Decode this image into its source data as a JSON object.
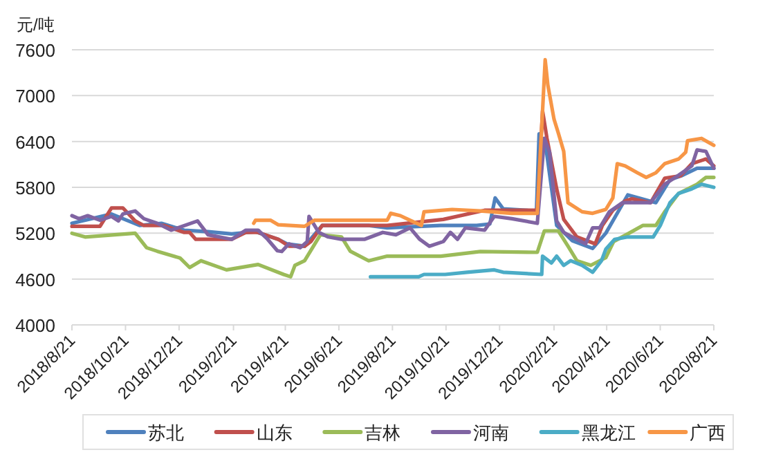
{
  "chart_data": {
    "type": "line",
    "ylabel": "元/吨",
    "grid": "y",
    "legend": "bottom",
    "line_style": "solid",
    "xlim": [
      "2018-08-21",
      "2020-08-21"
    ],
    "ylim": [
      4000,
      7600
    ],
    "yticks": [
      4000,
      4600,
      5200,
      5800,
      6400,
      7000,
      7600
    ],
    "xticks": [
      {
        "value": "2018-08-21",
        "label": "2018/8/21"
      },
      {
        "value": "2018-10-21",
        "label": "2018/10/21"
      },
      {
        "value": "2018-12-21",
        "label": "2018/12/21"
      },
      {
        "value": "2019-02-21",
        "label": "2019/2/21"
      },
      {
        "value": "2019-04-21",
        "label": "2019/4/21"
      },
      {
        "value": "2019-06-21",
        "label": "2019/6/21"
      },
      {
        "value": "2019-08-21",
        "label": "2019/8/21"
      },
      {
        "value": "2019-10-21",
        "label": "2019/10/21"
      },
      {
        "value": "2019-12-21",
        "label": "2019/12/21"
      },
      {
        "value": "2020-02-21",
        "label": "2020/2/21"
      },
      {
        "value": "2020-04-21",
        "label": "2020/4/21"
      },
      {
        "value": "2020-06-21",
        "label": "2020/6/21"
      },
      {
        "value": "2020-08-21",
        "label": "2020/8/21"
      }
    ],
    "series": [
      {
        "name": "苏北",
        "color": "#4f81bd",
        "x": [
          "2018-08-21",
          "2018-10-05",
          "2018-11-06",
          "2018-12-01",
          "2018-12-27",
          "2019-01-23",
          "2019-02-19",
          "2019-03-18",
          "2019-04-13",
          "2019-04-23",
          "2019-05-13",
          "2019-06-02",
          "2019-07-25",
          "2019-08-15",
          "2019-10-15",
          "2019-11-25",
          "2019-12-10",
          "2019-12-16",
          "2019-12-25",
          "2020-02-01",
          "2020-02-04",
          "2020-02-12",
          "2020-02-24",
          "2020-03-13",
          "2020-04-05",
          "2020-04-20",
          "2020-05-05",
          "2020-05-15",
          "2020-06-16",
          "2020-07-02",
          "2020-07-15",
          "2020-08-02",
          "2020-08-21"
        ],
        "values": [
          5330,
          5450,
          5300,
          5330,
          5240,
          5220,
          5190,
          5220,
          5120,
          5060,
          5030,
          5300,
          5300,
          5270,
          5300,
          5300,
          5320,
          5660,
          5520,
          5490,
          6500,
          6300,
          5300,
          5100,
          5000,
          5200,
          5500,
          5700,
          5600,
          5900,
          5950,
          6050,
          6050
        ]
      },
      {
        "name": "山东",
        "color": "#c0504d",
        "x": [
          "2018-08-21",
          "2018-09-22",
          "2018-10-05",
          "2018-10-18",
          "2018-11-01",
          "2018-11-11",
          "2018-12-04",
          "2018-12-27",
          "2019-01-02",
          "2019-01-09",
          "2019-02-19",
          "2019-03-07",
          "2019-03-21",
          "2019-04-13",
          "2019-04-25",
          "2019-05-13",
          "2019-05-20",
          "2019-06-02",
          "2019-08-15",
          "2019-10-18",
          "2019-12-04",
          "2020-02-02",
          "2020-02-08",
          "2020-02-13",
          "2020-02-24",
          "2020-03-03",
          "2020-03-18",
          "2020-04-08",
          "2020-04-16",
          "2020-04-28",
          "2020-05-12",
          "2020-05-20",
          "2020-06-10",
          "2020-06-26",
          "2020-07-14",
          "2020-07-27",
          "2020-08-12",
          "2020-08-21"
        ],
        "values": [
          5290,
          5290,
          5530,
          5530,
          5360,
          5300,
          5300,
          5210,
          5210,
          5120,
          5120,
          5210,
          5210,
          5120,
          5030,
          5030,
          5090,
          5300,
          5300,
          5380,
          5500,
          5500,
          6800,
          6440,
          5780,
          5380,
          5150,
          5060,
          5300,
          5500,
          5620,
          5650,
          5600,
          5920,
          5950,
          6110,
          6170,
          6080
        ]
      },
      {
        "name": "吉林",
        "color": "#9bbb59",
        "x": [
          "2018-08-21",
          "2018-09-05",
          "2018-11-01",
          "2018-11-14",
          "2018-11-26",
          "2018-12-22",
          "2019-01-02",
          "2019-01-15",
          "2019-02-13",
          "2019-03-21",
          "2019-04-19",
          "2019-04-27",
          "2019-05-02",
          "2019-05-13",
          "2019-05-31",
          "2019-06-24",
          "2019-07-04",
          "2019-07-25",
          "2019-08-15",
          "2019-10-15",
          "2019-11-29",
          "2020-02-02",
          "2020-02-10",
          "2020-02-26",
          "2020-03-08",
          "2020-03-18",
          "2020-04-03",
          "2020-04-20",
          "2020-04-29",
          "2020-05-15",
          "2020-06-01",
          "2020-06-16",
          "2020-06-26",
          "2020-07-12",
          "2020-08-02",
          "2020-08-12",
          "2020-08-21"
        ],
        "values": [
          5200,
          5150,
          5200,
          5010,
          4965,
          4875,
          4750,
          4840,
          4720,
          4790,
          4660,
          4630,
          4780,
          4840,
          5180,
          5150,
          4965,
          4840,
          4900,
          4900,
          4960,
          4950,
          5230,
          5230,
          5030,
          4840,
          4780,
          4880,
          5090,
          5190,
          5300,
          5300,
          5480,
          5720,
          5840,
          5930,
          5930
        ]
      },
      {
        "name": "河南",
        "color": "#8064a2",
        "x": [
          "2018-08-21",
          "2018-08-29",
          "2018-09-08",
          "2018-09-22",
          "2018-10-05",
          "2018-10-13",
          "2018-10-18",
          "2018-11-01",
          "2018-11-11",
          "2018-11-26",
          "2018-12-12",
          "2019-01-11",
          "2019-01-23",
          "2019-02-19",
          "2019-03-07",
          "2019-03-21",
          "2019-04-01",
          "2019-04-12",
          "2019-04-17",
          "2019-04-25",
          "2019-05-08",
          "2019-05-16",
          "2019-05-18",
          "2019-05-29",
          "2019-06-09",
          "2019-06-24",
          "2019-07-20",
          "2019-08-10",
          "2019-08-25",
          "2019-09-10",
          "2019-09-21",
          "2019-10-02",
          "2019-10-18",
          "2019-10-26",
          "2019-11-03",
          "2019-11-12",
          "2019-12-04",
          "2019-12-15",
          "2020-01-04",
          "2020-02-02",
          "2020-02-10",
          "2020-02-16",
          "2020-02-24",
          "2020-03-03",
          "2020-03-18",
          "2020-03-28",
          "2020-04-05",
          "2020-04-13",
          "2020-04-24",
          "2020-05-09",
          "2020-06-10",
          "2020-06-26",
          "2020-07-12",
          "2020-07-27",
          "2020-08-02",
          "2020-08-12",
          "2020-08-21"
        ],
        "values": [
          5430,
          5390,
          5430,
          5370,
          5420,
          5360,
          5450,
          5490,
          5390,
          5330,
          5240,
          5360,
          5180,
          5120,
          5240,
          5240,
          5120,
          4970,
          4960,
          5060,
          5010,
          5090,
          5420,
          5210,
          5150,
          5120,
          5120,
          5210,
          5180,
          5270,
          5120,
          5030,
          5090,
          5210,
          5120,
          5270,
          5240,
          5420,
          5390,
          5330,
          6440,
          6260,
          5360,
          5210,
          5120,
          5060,
          5270,
          5270,
          5480,
          5600,
          5600,
          5840,
          5960,
          6080,
          6290,
          6270,
          6050
        ]
      },
      {
        "name": "黑龙江",
        "color": "#4bacc6",
        "x": [
          "2019-07-27",
          "2019-09-20",
          "2019-09-26",
          "2019-10-20",
          "2019-11-14",
          "2019-12-15",
          "2019-12-25",
          "2020-02-07",
          "2020-02-08",
          "2020-02-18",
          "2020-02-24",
          "2020-03-03",
          "2020-03-11",
          "2020-03-24",
          "2020-04-05",
          "2020-04-15",
          "2020-04-20",
          "2020-04-30",
          "2020-05-15",
          "2020-06-13",
          "2020-06-21",
          "2020-07-02",
          "2020-07-12",
          "2020-07-27",
          "2020-08-07",
          "2020-08-21"
        ],
        "values": [
          4630,
          4630,
          4660,
          4660,
          4690,
          4720,
          4690,
          4660,
          4900,
          4810,
          4900,
          4780,
          4840,
          4780,
          4690,
          4840,
          4990,
          5120,
          5150,
          5150,
          5300,
          5600,
          5720,
          5780,
          5840,
          5800
        ]
      },
      {
        "name": "广西",
        "color": "#f79646",
        "x": [
          "2019-03-16",
          "2019-03-18",
          "2019-04-04",
          "2019-04-13",
          "2019-05-13",
          "2019-05-24",
          "2019-08-15",
          "2019-08-19",
          "2019-08-30",
          "2019-09-10",
          "2019-09-23",
          "2019-09-26",
          "2019-10-28",
          "2019-11-29",
          "2020-01-04",
          "2020-02-02",
          "2020-02-11",
          "2020-02-14",
          "2020-02-21",
          "2020-02-26",
          "2020-03-03",
          "2020-03-08",
          "2020-03-24",
          "2020-04-05",
          "2020-04-20",
          "2020-04-28",
          "2020-05-03",
          "2020-05-12",
          "2020-05-26",
          "2020-06-05",
          "2020-06-16",
          "2020-06-26",
          "2020-07-12",
          "2020-07-20",
          "2020-07-22",
          "2020-08-07",
          "2020-08-21"
        ],
        "values": [
          5330,
          5370,
          5370,
          5310,
          5290,
          5370,
          5370,
          5460,
          5430,
          5370,
          5300,
          5480,
          5510,
          5490,
          5460,
          5460,
          7470,
          7140,
          6690,
          6510,
          6270,
          5600,
          5480,
          5460,
          5510,
          5660,
          6110,
          6080,
          5990,
          5930,
          5990,
          6110,
          6170,
          6260,
          6410,
          6440,
          6350
        ]
      }
    ]
  }
}
